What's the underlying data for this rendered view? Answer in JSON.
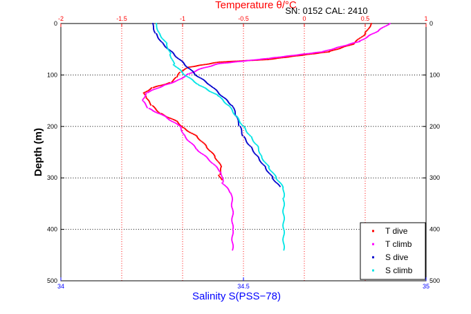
{
  "header": {
    "sensor_info": "SN: 0152  CAL: 2410"
  },
  "chart_data": {
    "type": "scatter",
    "title": "",
    "top_axis": {
      "label": "Temperature θ/°C",
      "range": [
        -2,
        1
      ],
      "ticks": [
        "-2",
        "-1.5",
        "-1",
        "-0.5",
        "0",
        "0.5",
        "1"
      ],
      "color": "#ff0000"
    },
    "bottom_axis": {
      "label": "Salinity S(PSS−78)",
      "range": [
        34,
        35
      ],
      "ticks": [
        "34",
        "34.5",
        "35"
      ],
      "color": "#0000ff"
    },
    "y_axis": {
      "label": "Depth (m)",
      "range": [
        0,
        500
      ],
      "reversed": true,
      "ticks": [
        "0",
        "100",
        "200",
        "300",
        "400",
        "500"
      ]
    },
    "grid": true,
    "legend": {
      "placement": "bottom-right",
      "entries": [
        {
          "name": "T dive",
          "color": "#ff0000"
        },
        {
          "name": "T climb",
          "color": "#ff00ff"
        },
        {
          "name": "S dive",
          "color": "#0000cc"
        },
        {
          "name": "S climb",
          "color": "#00e5e5"
        }
      ]
    },
    "series": [
      {
        "name": "T dive",
        "axis": "temperature",
        "color": "#ff0000",
        "points": [
          [
            0.55,
            0
          ],
          [
            0.5,
            20
          ],
          [
            0.4,
            40
          ],
          [
            0.2,
            55
          ],
          [
            -0.3,
            70
          ],
          [
            -0.7,
            75
          ],
          [
            -0.95,
            85
          ],
          [
            -1.02,
            95
          ],
          [
            -1.05,
            105
          ],
          [
            -1.1,
            115
          ],
          [
            -1.25,
            125
          ],
          [
            -1.32,
            135
          ],
          [
            -1.3,
            145
          ],
          [
            -1.25,
            160
          ],
          [
            -1.18,
            175
          ],
          [
            -1.05,
            190
          ],
          [
            -0.98,
            205
          ],
          [
            -0.88,
            220
          ],
          [
            -0.8,
            240
          ],
          [
            -0.73,
            260
          ],
          [
            -0.68,
            280
          ],
          [
            -0.7,
            295
          ],
          [
            -0.68,
            305
          ]
        ]
      },
      {
        "name": "T climb",
        "axis": "temperature",
        "color": "#ff00ff",
        "points": [
          [
            0.7,
            0
          ],
          [
            0.6,
            15
          ],
          [
            0.45,
            35
          ],
          [
            0.15,
            55
          ],
          [
            -0.3,
            68
          ],
          [
            -0.7,
            78
          ],
          [
            -0.85,
            88
          ],
          [
            -0.95,
            98
          ],
          [
            -1.05,
            112
          ],
          [
            -1.15,
            120
          ],
          [
            -1.3,
            135
          ],
          [
            -1.33,
            150
          ],
          [
            -1.28,
            165
          ],
          [
            -1.15,
            180
          ],
          [
            -1.02,
            200
          ],
          [
            -0.98,
            220
          ],
          [
            -0.88,
            245
          ],
          [
            -0.78,
            265
          ],
          [
            -0.68,
            290
          ],
          [
            -0.67,
            310
          ],
          [
            -0.6,
            330
          ],
          [
            -0.59,
            360
          ],
          [
            -0.59,
            400
          ],
          [
            -0.59,
            442
          ]
        ]
      },
      {
        "name": "S dive",
        "axis": "salinity",
        "color": "#0000cc",
        "points": [
          [
            34.25,
            0
          ],
          [
            34.26,
            20
          ],
          [
            34.28,
            40
          ],
          [
            34.31,
            60
          ],
          [
            34.34,
            80
          ],
          [
            34.37,
            100
          ],
          [
            34.41,
            120
          ],
          [
            34.44,
            140
          ],
          [
            34.47,
            160
          ],
          [
            34.48,
            180
          ],
          [
            34.49,
            200
          ],
          [
            34.5,
            220
          ],
          [
            34.52,
            240
          ],
          [
            34.54,
            260
          ],
          [
            34.56,
            280
          ],
          [
            34.58,
            300
          ],
          [
            34.6,
            318
          ]
        ]
      },
      {
        "name": "S climb",
        "axis": "salinity",
        "color": "#00e5e5",
        "points": [
          [
            34.26,
            0
          ],
          [
            34.27,
            20
          ],
          [
            34.29,
            40
          ],
          [
            34.3,
            60
          ],
          [
            34.31,
            80
          ],
          [
            34.34,
            100
          ],
          [
            34.38,
            120
          ],
          [
            34.43,
            140
          ],
          [
            34.46,
            160
          ],
          [
            34.48,
            180
          ],
          [
            34.5,
            200
          ],
          [
            34.52,
            220
          ],
          [
            34.54,
            240
          ],
          [
            34.55,
            260
          ],
          [
            34.57,
            280
          ],
          [
            34.59,
            300
          ],
          [
            34.61,
            320
          ],
          [
            34.61,
            340
          ],
          [
            34.61,
            370
          ],
          [
            34.61,
            400
          ],
          [
            34.61,
            442
          ]
        ]
      }
    ]
  }
}
